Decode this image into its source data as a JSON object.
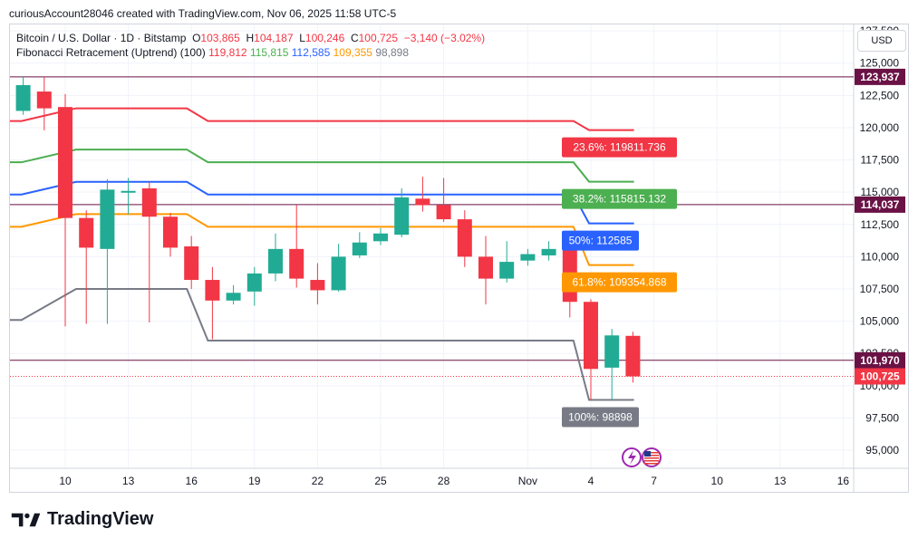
{
  "caption": "curiousAccount28046 created with TradingView.com, Nov 06, 2025 11:58 UTC-5",
  "currency_button": "USD",
  "brand": "TradingView",
  "legend": {
    "symbol": "Bitcoin / U.S. Dollar · 1D · Bitstamp",
    "open_label": "O",
    "open": "103,865",
    "high_label": "H",
    "high": "104,187",
    "low_label": "L",
    "low": "100,246",
    "close_label": "C",
    "close": "100,725",
    "change": "−3,140 (−3.02%)",
    "fib_title": "Fibonacci Retracement (Uptrend) (100)",
    "fib_values": [
      {
        "text": "119,812",
        "color": "#f23645"
      },
      {
        "text": "115,815",
        "color": "#4caf50"
      },
      {
        "text": "112,585",
        "color": "#2962ff"
      },
      {
        "text": "109,355",
        "color": "#ff9800"
      },
      {
        "text": "98,898",
        "color": "#787b86"
      }
    ]
  },
  "chart_data": {
    "type": "candlestick",
    "title": "Bitcoin / U.S. Dollar · 1D · Bitstamp",
    "ylim": [
      93600,
      128000
    ],
    "y_ticks": [
      95000,
      97500,
      100000,
      102500,
      105000,
      107500,
      110000,
      112500,
      115000,
      117500,
      120000,
      122500,
      125000,
      127500
    ],
    "y_tick_labels": [
      "95,000",
      "97,500",
      "100,000",
      "102,500",
      "105,000",
      "107,500",
      "110,000",
      "112,500",
      "115,000",
      "117,500",
      "120,000",
      "122,500",
      "125,000",
      "127,500"
    ],
    "x_ticks": [
      {
        "label": "10",
        "day": 10
      },
      {
        "label": "13",
        "day": 13
      },
      {
        "label": "16",
        "day": 16
      },
      {
        "label": "19",
        "day": 19
      },
      {
        "label": "22",
        "day": 22
      },
      {
        "label": "25",
        "day": 25
      },
      {
        "label": "28",
        "day": 28
      },
      {
        "label": "Nov",
        "day": 32
      },
      {
        "label": "4",
        "day": 35
      },
      {
        "label": "7",
        "day": 38
      },
      {
        "label": "10",
        "day": 41
      },
      {
        "label": "13",
        "day": 44
      },
      {
        "label": "16",
        "day": 47
      }
    ],
    "candles": [
      {
        "day": 8,
        "o": 121300,
        "h": 124000,
        "l": 121000,
        "c": 123300
      },
      {
        "day": 9,
        "o": 122800,
        "h": 123900,
        "l": 119800,
        "c": 121500
      },
      {
        "day": 10,
        "o": 121600,
        "h": 122600,
        "l": 104600,
        "c": 113000
      },
      {
        "day": 11,
        "o": 113000,
        "h": 113600,
        "l": 104800,
        "c": 110700
      },
      {
        "day": 12,
        "o": 110600,
        "h": 116000,
        "l": 104800,
        "c": 115200
      },
      {
        "day": 13,
        "o": 115000,
        "h": 116100,
        "l": 113300,
        "c": 115100
      },
      {
        "day": 14,
        "o": 115300,
        "h": 115800,
        "l": 104900,
        "c": 113100
      },
      {
        "day": 15,
        "o": 113100,
        "h": 113400,
        "l": 110000,
        "c": 110700
      },
      {
        "day": 16,
        "o": 110800,
        "h": 111600,
        "l": 107500,
        "c": 108200
      },
      {
        "day": 17,
        "o": 108200,
        "h": 109200,
        "l": 103600,
        "c": 106600
      },
      {
        "day": 18,
        "o": 106600,
        "h": 107800,
        "l": 106300,
        "c": 107200
      },
      {
        "day": 19,
        "o": 107300,
        "h": 109200,
        "l": 106200,
        "c": 108700
      },
      {
        "day": 20,
        "o": 108700,
        "h": 111800,
        "l": 108100,
        "c": 110600
      },
      {
        "day": 21,
        "o": 110600,
        "h": 114000,
        "l": 107600,
        "c": 108300
      },
      {
        "day": 22,
        "o": 108200,
        "h": 109500,
        "l": 106300,
        "c": 107400
      },
      {
        "day": 23,
        "o": 107400,
        "h": 111000,
        "l": 107300,
        "c": 110000
      },
      {
        "day": 24,
        "o": 110100,
        "h": 111900,
        "l": 109900,
        "c": 111100
      },
      {
        "day": 25,
        "o": 111200,
        "h": 112200,
        "l": 110900,
        "c": 111800
      },
      {
        "day": 26,
        "o": 111700,
        "h": 115300,
        "l": 111500,
        "c": 114600
      },
      {
        "day": 27,
        "o": 114500,
        "h": 116200,
        "l": 113500,
        "c": 114000
      },
      {
        "day": 28,
        "o": 114000,
        "h": 116100,
        "l": 112700,
        "c": 112900
      },
      {
        "day": 29,
        "o": 112900,
        "h": 113600,
        "l": 109200,
        "c": 110000
      },
      {
        "day": 30,
        "o": 110000,
        "h": 111600,
        "l": 106300,
        "c": 108300
      },
      {
        "day": 31,
        "o": 108300,
        "h": 111200,
        "l": 108000,
        "c": 109600
      },
      {
        "day": 32,
        "o": 109700,
        "h": 110600,
        "l": 109300,
        "c": 110200
      },
      {
        "day": 33,
        "o": 110100,
        "h": 111200,
        "l": 109700,
        "c": 110600
      },
      {
        "day": 34,
        "o": 110500,
        "h": 110800,
        "l": 105300,
        "c": 106500
      },
      {
        "day": 35,
        "o": 106500,
        "h": 106700,
        "l": 98900,
        "c": 101300
      },
      {
        "day": 36,
        "o": 101400,
        "h": 104400,
        "l": 98900,
        "c": 103900
      },
      {
        "day": 37,
        "o": 103865,
        "h": 104187,
        "l": 100246,
        "c": 100725
      }
    ],
    "fib_levels": [
      {
        "pct": "23.6%",
        "value": 119811.736,
        "old": 121500,
        "color": "#f23645",
        "label": "23.6%: 119811.736"
      },
      {
        "pct": "38.2%",
        "value": 115815.132,
        "old": 118300,
        "color": "#4caf50",
        "label": "38.2%: 115815.132"
      },
      {
        "pct": "50%",
        "value": 112585,
        "old": 115800,
        "color": "#2962ff",
        "label": "50%: 112585"
      },
      {
        "pct": "61.8%",
        "value": 109354.868,
        "old": 113300,
        "color": "#ff9800",
        "label": "61.8%: 109354.868"
      },
      {
        "pct": "100%",
        "value": 98898,
        "old": 105100,
        "color": "#787b86",
        "label": "100%: 98898"
      }
    ],
    "horizontal_lines": [
      {
        "value": 123937,
        "label": "123,937",
        "color": "#6a1245"
      },
      {
        "value": 114037,
        "label": "114,037",
        "color": "#6a1245"
      },
      {
        "value": 101970,
        "label": "101,970",
        "color": "#6a1245"
      }
    ],
    "last_price": {
      "value": 100725,
      "label": "100,725",
      "color": "#f23645"
    }
  }
}
